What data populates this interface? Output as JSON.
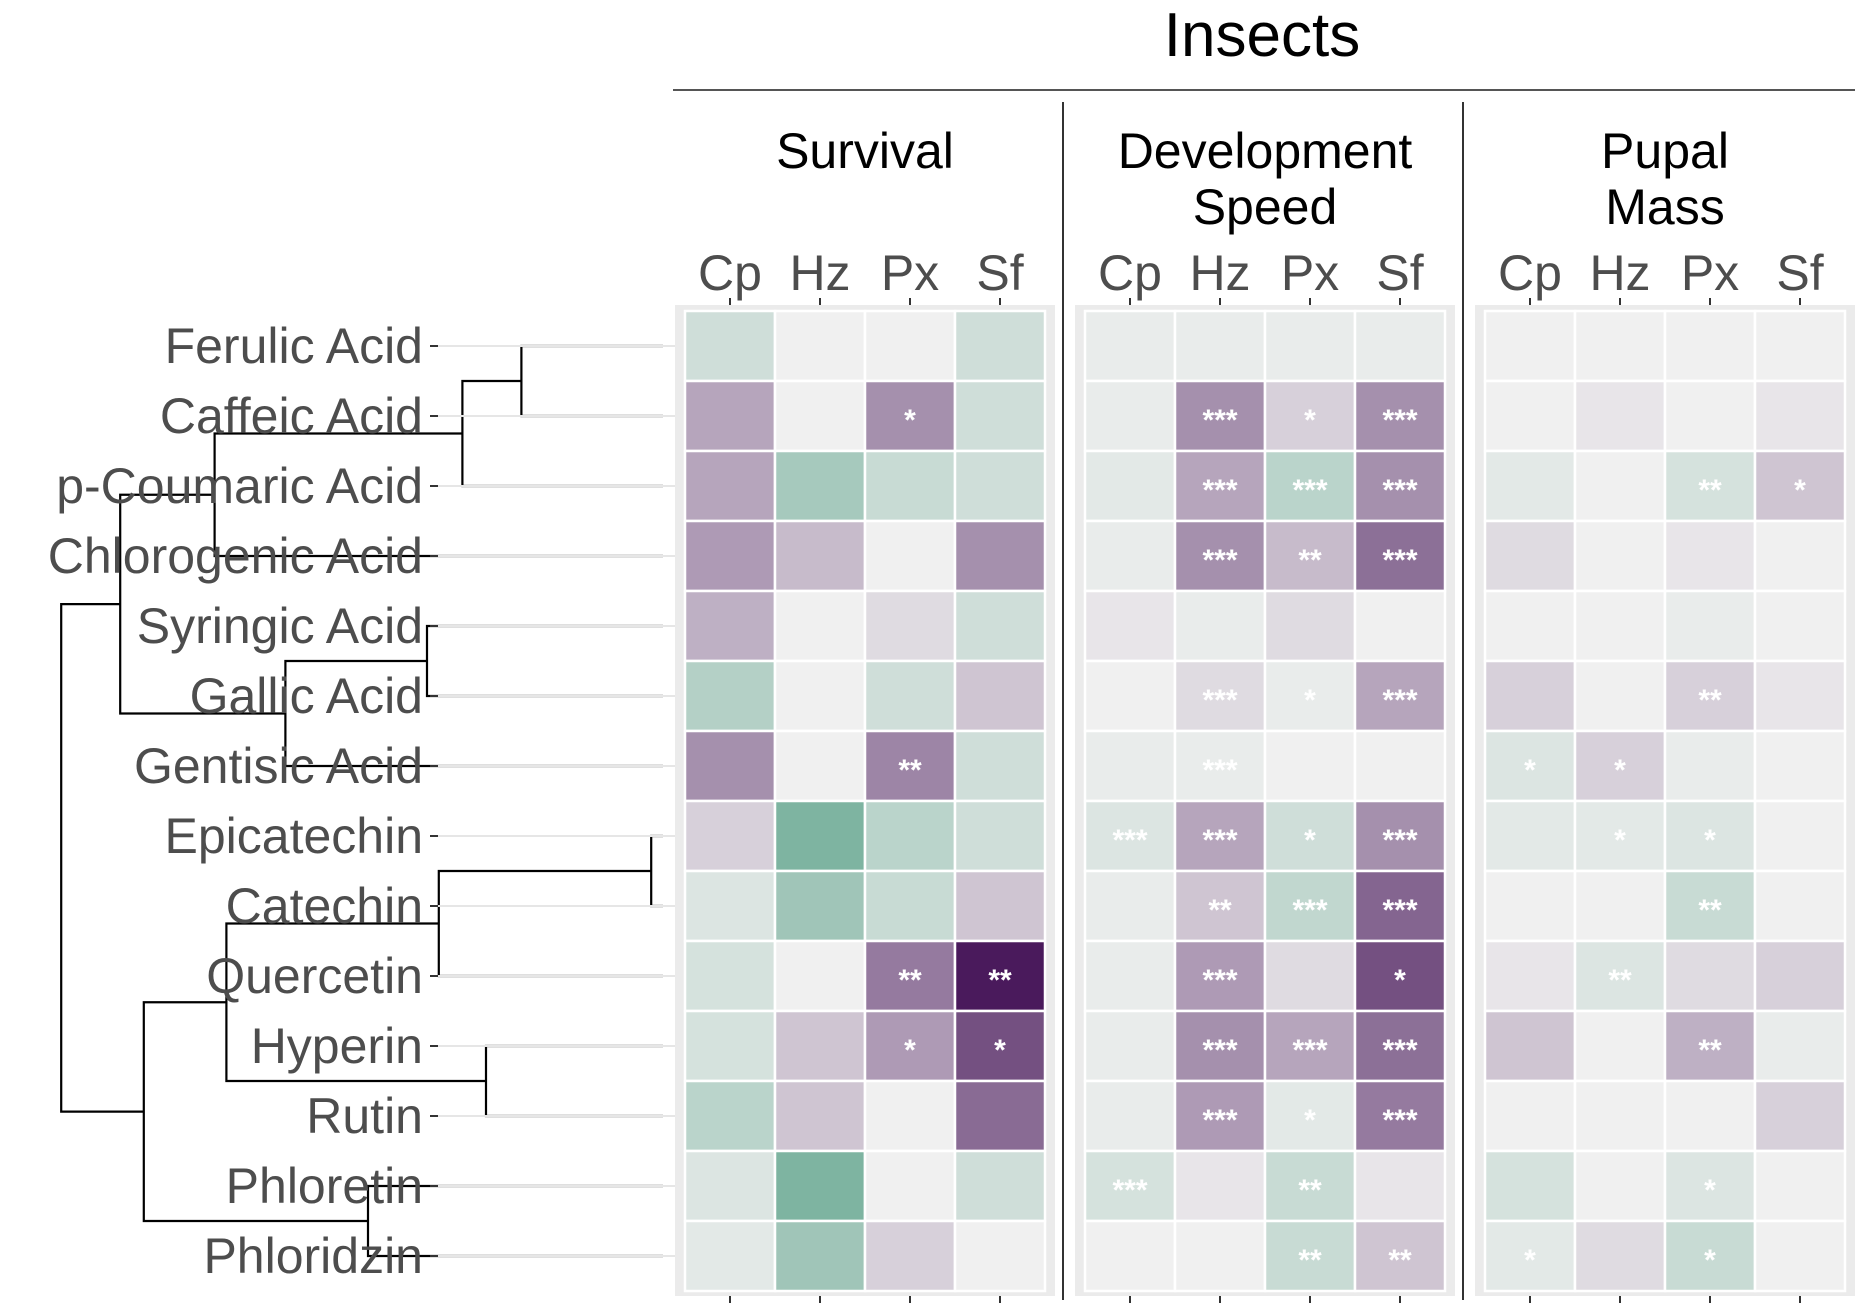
{
  "chart_data": {
    "type": "heatmap",
    "title": "Insects",
    "rows": [
      "Ferulic Acid",
      "Caffeic Acid",
      "p-Coumaric Acid",
      "Chlorogenic Acid",
      "Syringic Acid",
      "Gallic Acid",
      "Gentisic Acid",
      "Epicatechin",
      "Catechin",
      "Quercetin",
      "Hyperin",
      "Rutin",
      "Phloretin",
      "Phloridzin"
    ],
    "columns": [
      "Cp",
      "Hz",
      "Px",
      "Sf"
    ],
    "colors": {
      "negative_max": "#4a1a5c",
      "neutral": "#f0f0f0",
      "positive_max": "#6aa993",
      "panel_bg": "#ebebeb",
      "tile_border": "#ffffff"
    },
    "panels": [
      {
        "name": "Survival",
        "values": [
          [
            0.25,
            0,
            0,
            0.25
          ],
          [
            -0.35,
            0,
            -0.45,
            0.25
          ],
          [
            -0.35,
            0.55,
            0.3,
            0.25
          ],
          [
            -0.4,
            -0.25,
            0,
            -0.45
          ],
          [
            -0.3,
            0,
            -0.1,
            0.25
          ],
          [
            0.45,
            0,
            0.25,
            -0.2
          ],
          [
            -0.45,
            0,
            -0.5,
            0.25
          ],
          [
            -0.15,
            0.85,
            0.4,
            0.25
          ],
          [
            0.15,
            0.6,
            0.3,
            -0.2
          ],
          [
            0.2,
            0,
            -0.55,
            -1.0
          ],
          [
            0.2,
            -0.2,
            -0.4,
            -0.75
          ],
          [
            0.4,
            -0.2,
            0,
            -0.62
          ],
          [
            0.15,
            0.85,
            0,
            0.25
          ],
          [
            0.1,
            0.6,
            -0.15,
            0
          ]
        ],
        "sig": [
          [
            "",
            "",
            "",
            ""
          ],
          [
            "",
            "",
            "*",
            ""
          ],
          [
            "",
            "",
            "",
            ""
          ],
          [
            "",
            "",
            "",
            ""
          ],
          [
            "",
            "",
            "",
            ""
          ],
          [
            "",
            "",
            "",
            ""
          ],
          [
            "",
            "",
            "**",
            ""
          ],
          [
            "",
            "",
            "",
            ""
          ],
          [
            "",
            "",
            "",
            ""
          ],
          [
            "",
            "",
            "**",
            "**"
          ],
          [
            "",
            "",
            "*",
            "*"
          ],
          [
            "",
            "",
            "",
            ""
          ],
          [
            "",
            "",
            "",
            ""
          ],
          [
            "",
            "",
            "",
            ""
          ]
        ]
      },
      {
        "name": "Development Speed",
        "title_lines": [
          "Development",
          "Speed"
        ],
        "values": [
          [
            0.05,
            0.05,
            0.05,
            0.05
          ],
          [
            0.05,
            -0.45,
            -0.15,
            -0.45
          ],
          [
            0.1,
            -0.35,
            0.4,
            -0.45
          ],
          [
            0.05,
            -0.45,
            -0.25,
            -0.6
          ],
          [
            -0.05,
            0.05,
            -0.1,
            0
          ],
          [
            0,
            -0.1,
            0.05,
            -0.35
          ],
          [
            0.05,
            0.05,
            0,
            0
          ],
          [
            0.15,
            -0.35,
            0.25,
            -0.45
          ],
          [
            0.05,
            -0.2,
            0.35,
            -0.65
          ],
          [
            0.05,
            -0.4,
            -0.1,
            -0.75
          ],
          [
            0.05,
            -0.45,
            -0.35,
            -0.6
          ],
          [
            0.05,
            -0.4,
            0.1,
            -0.55
          ],
          [
            0.2,
            -0.05,
            0.3,
            -0.05
          ],
          [
            0,
            0,
            0.3,
            -0.2
          ]
        ],
        "sig": [
          [
            "",
            "",
            "",
            ""
          ],
          [
            "",
            "***",
            "*",
            "***"
          ],
          [
            "",
            "***",
            "***",
            "***"
          ],
          [
            "",
            "***",
            "**",
            "***"
          ],
          [
            "",
            "",
            "",
            ""
          ],
          [
            "",
            "***",
            "*",
            "***"
          ],
          [
            "",
            "***",
            "",
            ""
          ],
          [
            "***",
            "***",
            "*",
            "***"
          ],
          [
            "",
            "**",
            "***",
            "***"
          ],
          [
            "",
            "***",
            "",
            "*"
          ],
          [
            "",
            "***",
            "***",
            "***"
          ],
          [
            "",
            "***",
            "*",
            "***"
          ],
          [
            "***",
            "",
            "**",
            ""
          ],
          [
            "",
            "",
            "**",
            "**"
          ]
        ]
      },
      {
        "name": "Pupal Mass",
        "title_lines": [
          "Pupal",
          "Mass"
        ],
        "values": [
          [
            0,
            0,
            0,
            0
          ],
          [
            0,
            -0.05,
            0,
            -0.05
          ],
          [
            0.1,
            0,
            0.2,
            -0.2
          ],
          [
            -0.1,
            0,
            -0.05,
            0
          ],
          [
            0,
            0,
            0.05,
            0
          ],
          [
            -0.15,
            0,
            -0.15,
            -0.05
          ],
          [
            0.15,
            -0.15,
            0.05,
            0
          ],
          [
            0.1,
            0.1,
            0.15,
            0
          ],
          [
            0,
            0,
            0.3,
            0
          ],
          [
            -0.05,
            0.15,
            -0.1,
            -0.15
          ],
          [
            -0.2,
            0,
            -0.3,
            0.05
          ],
          [
            0,
            0,
            0,
            -0.15
          ],
          [
            0.2,
            0,
            0.15,
            0
          ],
          [
            0.1,
            -0.1,
            0.3,
            0
          ]
        ],
        "sig": [
          [
            "",
            "",
            "",
            ""
          ],
          [
            "",
            "",
            "",
            ""
          ],
          [
            "",
            "",
            "**",
            "*"
          ],
          [
            "",
            "",
            "",
            ""
          ],
          [
            "",
            "",
            "",
            ""
          ],
          [
            "",
            "",
            "**",
            ""
          ],
          [
            "*",
            "*",
            "",
            ""
          ],
          [
            "",
            "*",
            "*",
            ""
          ],
          [
            "",
            "",
            "**",
            ""
          ],
          [
            "",
            "**",
            "",
            ""
          ],
          [
            "",
            "",
            "**",
            ""
          ],
          [
            "",
            "",
            "",
            ""
          ],
          [
            "",
            "",
            "*",
            ""
          ],
          [
            "*",
            "",
            "*",
            ""
          ]
        ]
      }
    ],
    "dendrogram": {
      "leaf_order": [
        "Ferulic Acid",
        "Caffeic Acid",
        "p-Coumaric Acid",
        "Chlorogenic Acid",
        "Syringic Acid",
        "Gallic Acid",
        "Gentisic Acid",
        "Epicatechin",
        "Catechin",
        "Quercetin",
        "Hyperin",
        "Rutin",
        "Phloretin",
        "Phloridzin"
      ],
      "merges": [
        [
          0,
          1,
          0.12
        ],
        [
          7,
          8,
          0.01
        ],
        [
          4,
          5,
          0.2
        ],
        [
          10,
          11,
          0.15
        ],
        [
          12,
          13,
          0.25
        ],
        [
          -1,
          2,
          0.17
        ],
        [
          -2,
          9,
          0.19
        ],
        [
          -6,
          3,
          0.38
        ],
        [
          -3,
          6,
          0.32
        ],
        [
          -7,
          -4,
          0.37
        ],
        [
          -8,
          -9,
          0.46
        ],
        [
          -10,
          -5,
          0.44
        ],
        [
          -12,
          -11,
          0.51
        ]
      ]
    }
  }
}
